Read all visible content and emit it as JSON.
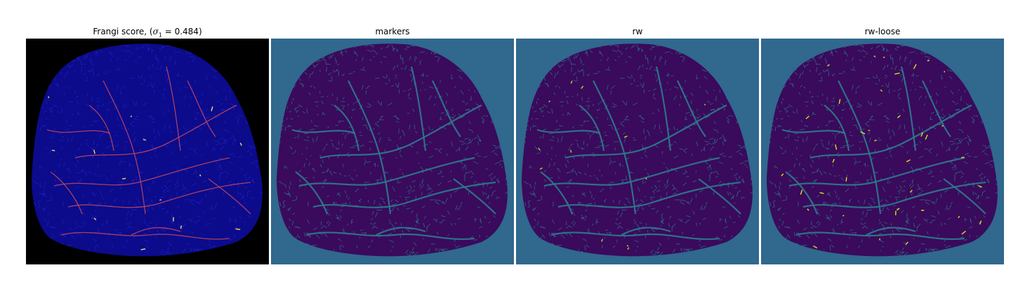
{
  "panels": [
    {
      "id": "frangi",
      "title_prefix": "Frangi score, (",
      "title_symbol": "σ",
      "title_subscript": "1",
      "title_suffix": " = 0.484)",
      "background_color": "#000000",
      "region_color": "#0b0b8c",
      "texture_color": "#2323c8",
      "vessel_color": "#c8485a",
      "highlight_color": "#f5d76e"
    },
    {
      "id": "markers",
      "title": "markers",
      "background_color": "#30688e",
      "region_color": "#3a0a5c",
      "texture_color": "#2d7a8c"
    },
    {
      "id": "rw",
      "title": "rw",
      "background_color": "#30688e",
      "region_color": "#3a0a5c",
      "texture_color": "#2d7a8c",
      "highlight_color": "#b8de29"
    },
    {
      "id": "rw-loose",
      "title": "rw-loose",
      "background_color": "#30688e",
      "region_color": "#3a0a5c",
      "texture_color": "#2d7a8c",
      "highlight_color": "#dce319"
    }
  ]
}
